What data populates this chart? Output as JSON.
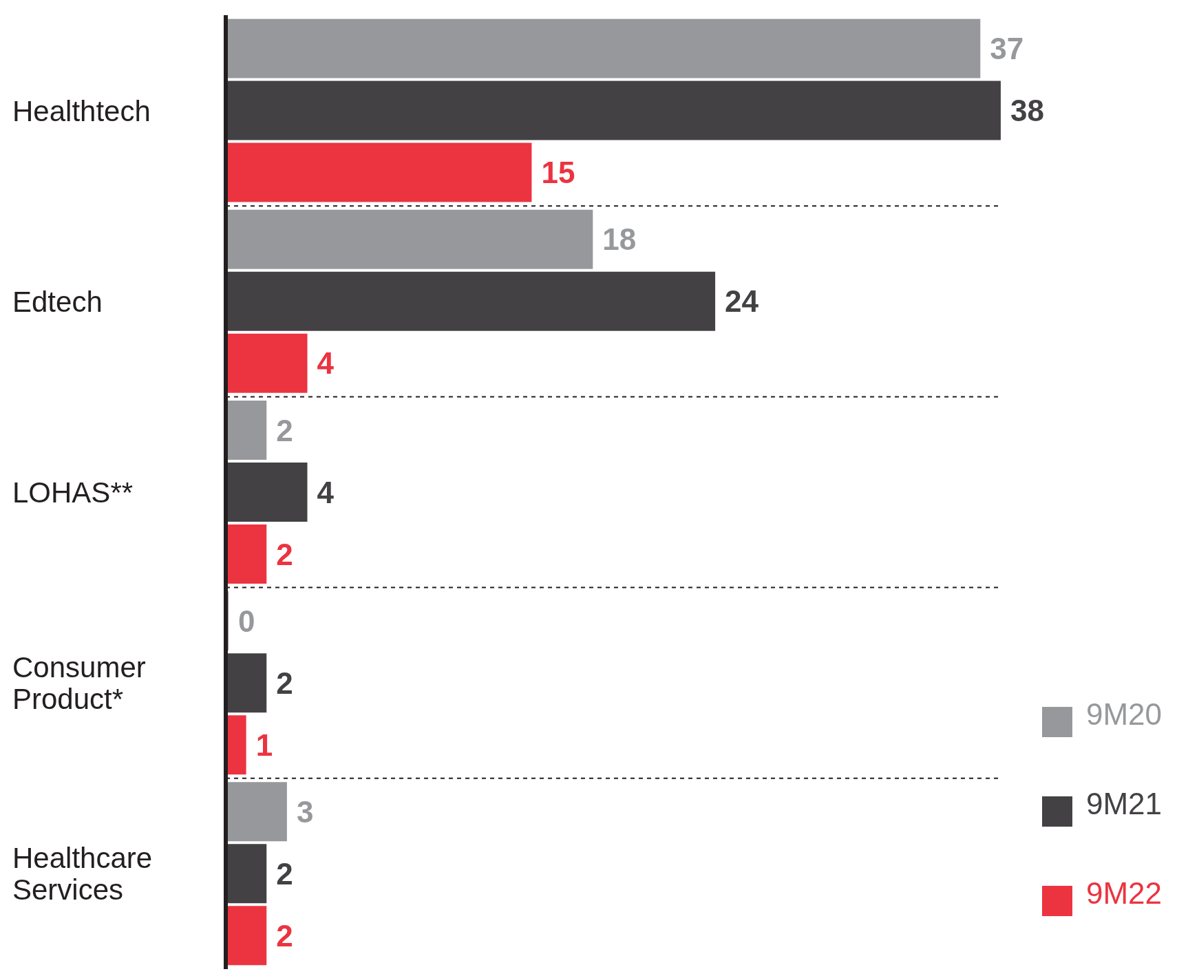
{
  "chart_data": {
    "type": "bar",
    "orientation": "horizontal",
    "categories": [
      "Healthtech",
      "Edtech",
      "LOHAS**",
      "Consumer Product*",
      "Healthcare Services"
    ],
    "series": [
      {
        "name": "9M20",
        "color": "#97989c",
        "values": [
          37,
          18,
          2,
          0,
          3
        ]
      },
      {
        "name": "9M21",
        "color": "#434144",
        "values": [
          38,
          24,
          4,
          2,
          2
        ]
      },
      {
        "name": "9M22",
        "color": "#ec3340",
        "values": [
          15,
          4,
          2,
          1,
          2
        ]
      }
    ],
    "tick_labels": "y",
    "data_labels": true,
    "grid": "y",
    "legend": "bottom right"
  }
}
